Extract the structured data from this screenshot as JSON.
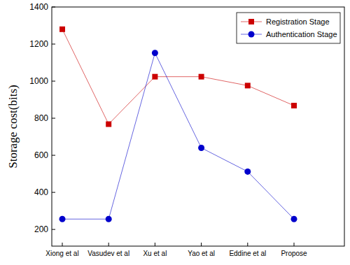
{
  "chart_data": {
    "type": "line",
    "y_label": "Storage cost(bits)",
    "categories": [
      "Xiong et al",
      "Vasudev et al",
      "Xu et al",
      "Yao et al",
      "Eddine et al",
      "Propose"
    ],
    "series": [
      {
        "name": "Registration Stage",
        "color": "#cc0000",
        "marker": "square",
        "values": [
          1280,
          768,
          1024,
          1024,
          976,
          868
        ]
      },
      {
        "name": "Authentication Stage",
        "color": "#0000cc",
        "marker": "circle",
        "values": [
          256,
          256,
          1152,
          640,
          512,
          256
        ]
      }
    ],
    "ylim": [
      110,
      1400
    ],
    "yticks": [
      200,
      400,
      600,
      800,
      1000,
      1200,
      1400
    ],
    "grid": false,
    "legend": "upper right"
  }
}
